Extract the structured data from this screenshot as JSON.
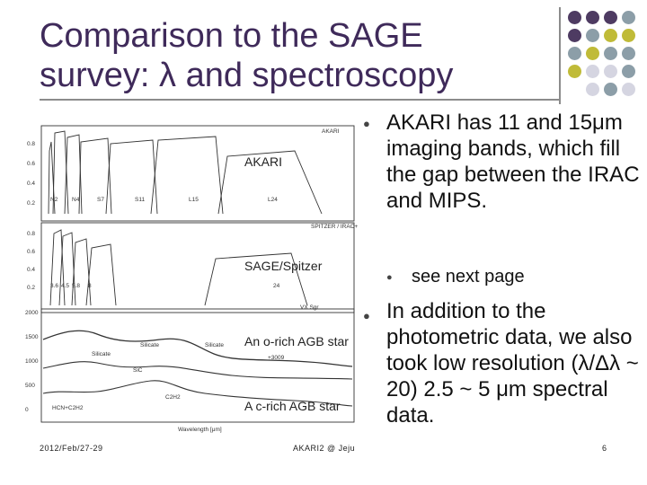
{
  "slide": {
    "title_line1": "Comparison to the SAGE",
    "title_line2": "survey:  λ and spectroscopy",
    "bullets": [
      "AKARI has 11 and 15μm imaging bands, which fill the gap between the IRAC and MIPS.",
      "In addition to the photometric data, we also took low resolution (λ/Δλ ~ 20) 2.5 ~ 5 μm spectral data."
    ],
    "sub_bullet": "see next page",
    "figure_labels": {
      "akari": "AKARI",
      "sage": "SAGE/Spitzer",
      "o_rich": "An o-rich AGB star",
      "c_rich": "A  c-rich AGB star"
    },
    "figure_axis": {
      "wavelength": "Wavelength [μm]",
      "y_top": [
        "0.8",
        "0.6",
        "0.4",
        "0.2"
      ],
      "y_mid": [
        "0.8",
        "0.6",
        "0.4",
        "0.2"
      ],
      "y_bot": [
        "2000",
        "1500",
        "1000",
        "500",
        "0"
      ],
      "akari_band_names": [
        "N2",
        "N4",
        "S7",
        "S11",
        "L15",
        "L24"
      ],
      "irac_band_names": [
        "3.6",
        "4.5",
        "5.8",
        "8",
        "24"
      ],
      "small_labels": [
        "AKARI",
        "SPITZER / IRAC+M",
        "VX Sgr",
        "Silicate",
        "Silicate",
        "Silicate",
        "SiC",
        "C2H2",
        "HCN+C2H2",
        "+3009"
      ]
    },
    "footer_date": "2012/Feb/27-29",
    "footer_event": "AKARI2 @ Jeju",
    "page_number": "6"
  },
  "colors": {
    "title": "#3f2a5a",
    "dot_purple": "#4e3b62",
    "dot_gray": "#8c9ea8",
    "dot_olive": "#c0bb38",
    "dot_light": "#d5d5e1"
  },
  "icons": [
    "bullet-icon",
    "decorative-dot-grid"
  ]
}
